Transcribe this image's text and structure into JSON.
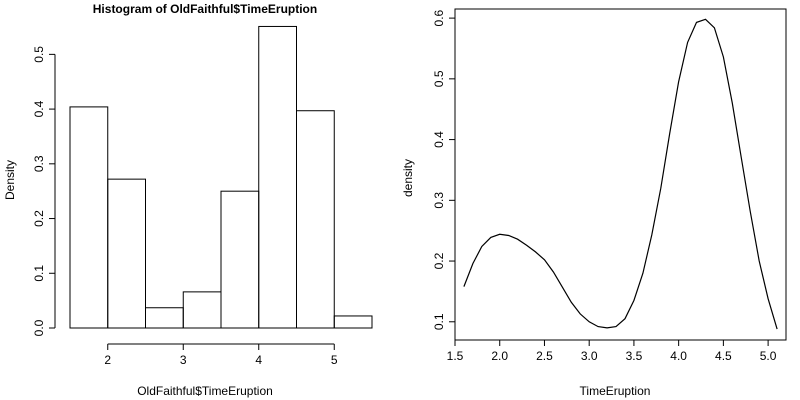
{
  "chart_data": [
    {
      "type": "bar",
      "title": "Histogram of OldFaithful$TimeEruption",
      "xlabel": "OldFaithful$TimeEruption",
      "ylabel": "Density",
      "bins": [
        {
          "x0": 1.5,
          "x1": 2.0,
          "value": 0.404
        },
        {
          "x0": 2.0,
          "x1": 2.5,
          "value": 0.272
        },
        {
          "x0": 2.5,
          "x1": 3.0,
          "value": 0.037
        },
        {
          "x0": 3.0,
          "x1": 3.5,
          "value": 0.066
        },
        {
          "x0": 3.5,
          "x1": 4.0,
          "value": 0.25
        },
        {
          "x0": 4.0,
          "x1": 4.5,
          "value": 0.551
        },
        {
          "x0": 4.5,
          "x1": 5.0,
          "value": 0.397
        },
        {
          "x0": 5.0,
          "x1": 5.5,
          "value": 0.022
        }
      ],
      "xticks": [
        2,
        3,
        4,
        5
      ],
      "yticks": [
        0.0,
        0.1,
        0.2,
        0.3,
        0.4,
        0.5
      ],
      "xtick_labels": [
        "2",
        "3",
        "4",
        "5"
      ],
      "ytick_labels": [
        "0.0",
        "0.1",
        "0.2",
        "0.3",
        "0.4",
        "0.5"
      ],
      "xlim": [
        1.5,
        5.5
      ],
      "ylim": [
        0,
        0.55
      ],
      "grid": false
    },
    {
      "type": "line",
      "title": "",
      "xlabel": "TimeEruption",
      "ylabel": "density",
      "x": [
        1.6,
        1.7,
        1.8,
        1.9,
        2.0,
        2.1,
        2.2,
        2.3,
        2.4,
        2.5,
        2.6,
        2.7,
        2.8,
        2.9,
        3.0,
        3.1,
        3.2,
        3.3,
        3.4,
        3.5,
        3.6,
        3.7,
        3.8,
        3.9,
        4.0,
        4.1,
        4.2,
        4.3,
        4.4,
        4.5,
        4.6,
        4.7,
        4.8,
        4.9,
        5.0,
        5.1
      ],
      "y": [
        0.158,
        0.196,
        0.224,
        0.239,
        0.244,
        0.242,
        0.236,
        0.226,
        0.215,
        0.202,
        0.182,
        0.157,
        0.132,
        0.113,
        0.1,
        0.092,
        0.09,
        0.092,
        0.105,
        0.135,
        0.18,
        0.243,
        0.32,
        0.41,
        0.495,
        0.56,
        0.593,
        0.598,
        0.584,
        0.536,
        0.46,
        0.37,
        0.282,
        0.2,
        0.138,
        0.088
      ],
      "xticks": [
        1.5,
        2.0,
        2.5,
        3.0,
        3.5,
        4.0,
        4.5,
        5.0
      ],
      "yticks": [
        0.1,
        0.2,
        0.3,
        0.4,
        0.5,
        0.6
      ],
      "xtick_labels": [
        "1.5",
        "2.0",
        "2.5",
        "3.0",
        "3.5",
        "4.0",
        "4.5",
        "5.0"
      ],
      "ytick_labels": [
        "0.1",
        "0.2",
        "0.3",
        "0.4",
        "0.5",
        "0.6"
      ],
      "xlim": [
        1.5,
        5.2
      ],
      "ylim": [
        0.07,
        0.615
      ],
      "grid": false
    }
  ]
}
